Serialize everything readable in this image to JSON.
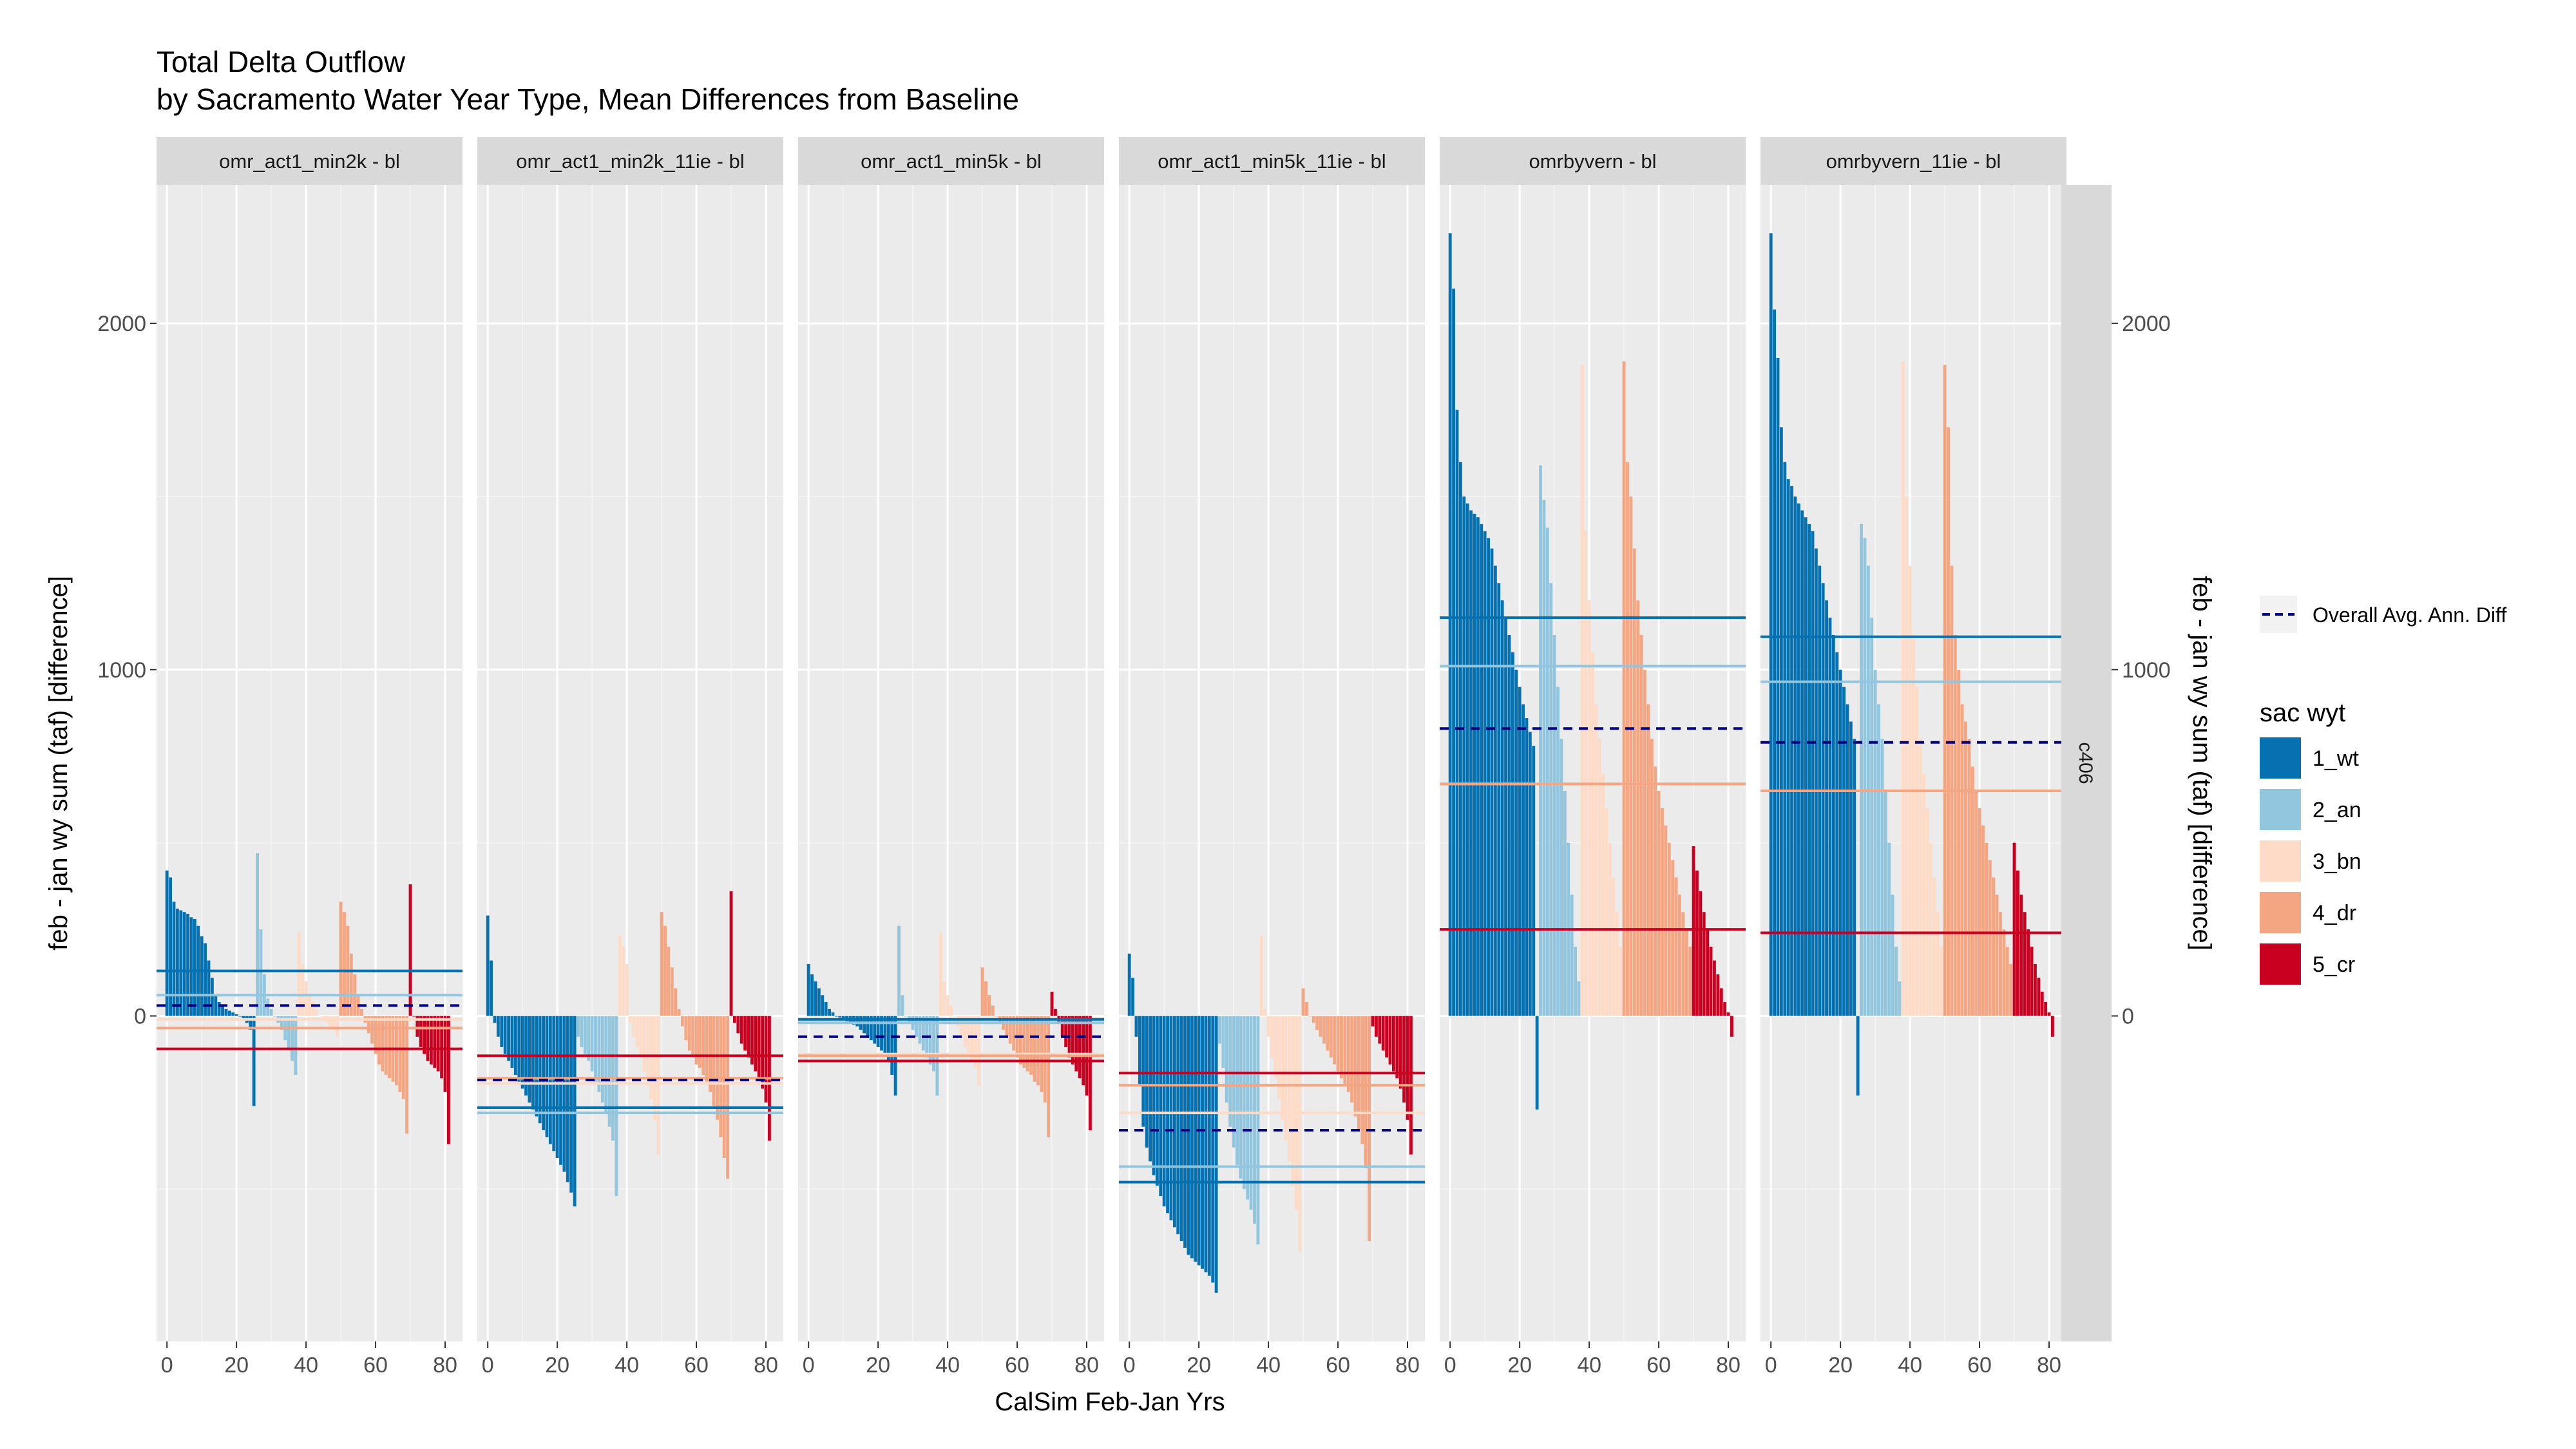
{
  "chart_data": {
    "type": "bar",
    "title": "Total Delta Outflow",
    "subtitle": "by Sacramento Water Year Type, Mean Differences from Baseline",
    "xlabel": "CalSim Feb-Jan Yrs",
    "ylabel": "feb - jan wy sum (taf) [difference]",
    "ylabel_right": "feb - jan wy sum (taf) [difference]",
    "row_strip": "c406",
    "xlim": [
      -3,
      85
    ],
    "ylim": [
      -940,
      2400
    ],
    "x_ticks": [
      0,
      20,
      40,
      60,
      80
    ],
    "y_ticks": [
      0,
      1000,
      2000
    ],
    "legend": {
      "line_label": "Overall Avg. Ann. Diff",
      "title": "sac wyt",
      "placement": "right",
      "items": [
        {
          "key": "1_wt",
          "label": "1_wt",
          "color": "#0571b0"
        },
        {
          "key": "2_an",
          "label": "2_an",
          "color": "#92c5de"
        },
        {
          "key": "3_bn",
          "label": "3_bn",
          "color": "#fddbc7"
        },
        {
          "key": "4_dr",
          "label": "4_dr",
          "color": "#f4a582"
        },
        {
          "key": "5_cr",
          "label": "5_cr",
          "color": "#ca0020"
        }
      ]
    },
    "groups": [
      {
        "key": "1_wt",
        "count": 26
      },
      {
        "key": "2_an",
        "count": 12
      },
      {
        "key": "3_bn",
        "count": 12
      },
      {
        "key": "4_dr",
        "count": 20
      },
      {
        "key": "5_cr",
        "count": 12
      }
    ],
    "panels": [
      {
        "label": "omr_act1_min2k - bl",
        "overall_mean": 30,
        "group_means": {
          "1_wt": 130,
          "2_an": 60,
          "3_bn": -10,
          "4_dr": -35,
          "5_cr": -95
        },
        "groups": {
          "1_wt": [
            420,
            400,
            330,
            310,
            305,
            300,
            295,
            285,
            280,
            260,
            230,
            210,
            160,
            110,
            60,
            40,
            30,
            20,
            15,
            10,
            5,
            0,
            -10,
            -20,
            -40,
            -260
          ],
          "2_an": [
            470,
            250,
            120,
            50,
            20,
            0,
            -20,
            -40,
            -70,
            -100,
            -130,
            -170
          ],
          "3_bn": [
            240,
            150,
            100,
            60,
            40,
            20,
            0,
            -10,
            -20,
            -30,
            -40,
            -60
          ],
          "4_dr": [
            330,
            300,
            260,
            180,
            120,
            60,
            20,
            -20,
            -50,
            -80,
            -110,
            -140,
            -160,
            -170,
            -180,
            -190,
            -200,
            -220,
            -240,
            -340
          ],
          "5_cr": [
            380,
            0,
            -60,
            -90,
            -110,
            -130,
            -140,
            -150,
            -160,
            -180,
            -220,
            -370
          ]
        }
      },
      {
        "label": "omr_act1_min2k_11ie - bl",
        "overall_mean": -185,
        "group_means": {
          "1_wt": -265,
          "2_an": -280,
          "3_bn": -195,
          "4_dr": -180,
          "5_cr": -115
        },
        "groups": {
          "1_wt": [
            290,
            160,
            -20,
            -60,
            -90,
            -110,
            -130,
            -150,
            -170,
            -190,
            -210,
            -230,
            -250,
            -270,
            -290,
            -310,
            -330,
            -350,
            -370,
            -390,
            -410,
            -430,
            -450,
            -480,
            -510,
            -550
          ],
          "2_an": [
            -60,
            -90,
            -110,
            -130,
            -160,
            -190,
            -220,
            -250,
            -280,
            -320,
            -360,
            -520
          ],
          "3_bn": [
            230,
            200,
            150,
            -20,
            -60,
            -90,
            -120,
            -160,
            -200,
            -240,
            -300,
            -400
          ],
          "4_dr": [
            300,
            260,
            200,
            140,
            80,
            20,
            -30,
            -70,
            -100,
            -120,
            -140,
            -150,
            -170,
            -190,
            -220,
            -260,
            -300,
            -350,
            -410,
            -470
          ],
          "5_cr": [
            360,
            -20,
            -50,
            -80,
            -100,
            -120,
            -140,
            -160,
            -180,
            -210,
            -250,
            -360
          ]
        }
      },
      {
        "label": "omr_act1_min5k - bl",
        "overall_mean": -60,
        "group_means": {
          "1_wt": -10,
          "2_an": -20,
          "3_bn": -110,
          "4_dr": -115,
          "5_cr": -130
        },
        "groups": {
          "1_wt": [
            150,
            120,
            100,
            80,
            60,
            40,
            20,
            10,
            0,
            -5,
            -10,
            -15,
            -20,
            -25,
            -30,
            -40,
            -50,
            -60,
            -70,
            -80,
            -90,
            -100,
            -110,
            -130,
            -170,
            -230
          ],
          "2_an": [
            260,
            60,
            0,
            -20,
            -40,
            -60,
            -80,
            -100,
            -120,
            -140,
            -160,
            -230
          ],
          "3_bn": [
            240,
            100,
            60,
            30,
            0,
            -30,
            -60,
            -90,
            -110,
            -130,
            -150,
            -200
          ],
          "4_dr": [
            140,
            100,
            60,
            30,
            0,
            -20,
            -40,
            -60,
            -80,
            -100,
            -120,
            -140,
            -150,
            -160,
            -170,
            -190,
            -200,
            -220,
            -250,
            -350
          ],
          "5_cr": [
            70,
            20,
            -20,
            -60,
            -90,
            -120,
            -140,
            -160,
            -180,
            -200,
            -230,
            -330
          ]
        }
      },
      {
        "label": "omr_act1_min5k_11ie - bl",
        "overall_mean": -330,
        "group_means": {
          "1_wt": -480,
          "2_an": -435,
          "3_bn": -280,
          "4_dr": -200,
          "5_cr": -165
        },
        "groups": {
          "1_wt": [
            180,
            110,
            -60,
            -200,
            -320,
            -380,
            -420,
            -460,
            -490,
            -520,
            -550,
            -570,
            -590,
            -610,
            -630,
            -650,
            -670,
            -690,
            -700,
            -710,
            -720,
            -730,
            -740,
            -750,
            -770,
            -800
          ],
          "2_an": [
            -80,
            -150,
            -250,
            -320,
            -380,
            -430,
            -470,
            -500,
            -530,
            -560,
            -600,
            -660
          ],
          "3_bn": [
            230,
            20,
            -60,
            -120,
            -180,
            -240,
            -300,
            -360,
            -420,
            -490,
            -560,
            -680
          ],
          "4_dr": [
            80,
            40,
            0,
            -20,
            -40,
            -60,
            -80,
            -100,
            -120,
            -140,
            -160,
            -180,
            -200,
            -220,
            -250,
            -290,
            -330,
            -370,
            -440,
            -650
          ],
          "5_cr": [
            -30,
            -60,
            -80,
            -100,
            -120,
            -140,
            -160,
            -180,
            -210,
            -250,
            -300,
            -400
          ]
        }
      },
      {
        "label": "omrbyvern - bl",
        "overall_mean": 830,
        "group_means": {
          "1_wt": 1150,
          "2_an": 1010,
          "3_bn": 670,
          "4_dr": 670,
          "5_cr": 250
        },
        "groups": {
          "1_wt": [
            2260,
            2100,
            1750,
            1600,
            1500,
            1480,
            1460,
            1450,
            1440,
            1420,
            1400,
            1380,
            1350,
            1300,
            1250,
            1200,
            1150,
            1100,
            1050,
            1000,
            950,
            900,
            860,
            820,
            780,
            -270
          ],
          "2_an": [
            1590,
            1490,
            1410,
            1250,
            1100,
            950,
            800,
            650,
            500,
            350,
            200,
            100
          ],
          "3_bn": [
            1880,
            1400,
            1200,
            1050,
            900,
            800,
            700,
            600,
            500,
            400,
            300,
            200
          ],
          "4_dr": [
            1890,
            1600,
            1500,
            1350,
            1200,
            1100,
            1000,
            900,
            800,
            720,
            650,
            600,
            550,
            500,
            450,
            400,
            350,
            300,
            250,
            200
          ],
          "5_cr": [
            490,
            420,
            360,
            300,
            250,
            200,
            160,
            120,
            80,
            40,
            10,
            -60
          ]
        }
      },
      {
        "label": "omrbyvern_11ie - bl",
        "overall_mean": 790,
        "group_means": {
          "1_wt": 1095,
          "2_an": 965,
          "3_bn": 650,
          "4_dr": 650,
          "5_cr": 240
        },
        "groups": {
          "1_wt": [
            2260,
            2040,
            1900,
            1700,
            1600,
            1550,
            1530,
            1500,
            1480,
            1460,
            1440,
            1420,
            1400,
            1350,
            1300,
            1250,
            1200,
            1150,
            1100,
            1050,
            1000,
            950,
            900,
            850,
            800,
            -230
          ],
          "2_an": [
            1420,
            1380,
            1300,
            1150,
            1000,
            900,
            800,
            650,
            500,
            350,
            200,
            100
          ],
          "3_bn": [
            1890,
            1500,
            1300,
            1100,
            950,
            800,
            700,
            600,
            500,
            400,
            300,
            200
          ],
          "4_dr": [
            1880,
            1700,
            1300,
            1100,
            1000,
            900,
            850,
            800,
            720,
            650,
            600,
            550,
            500,
            450,
            400,
            350,
            300,
            250,
            200,
            150
          ],
          "5_cr": [
            500,
            420,
            350,
            300,
            250,
            200,
            150,
            110,
            70,
            40,
            10,
            -60
          ]
        }
      }
    ]
  }
}
